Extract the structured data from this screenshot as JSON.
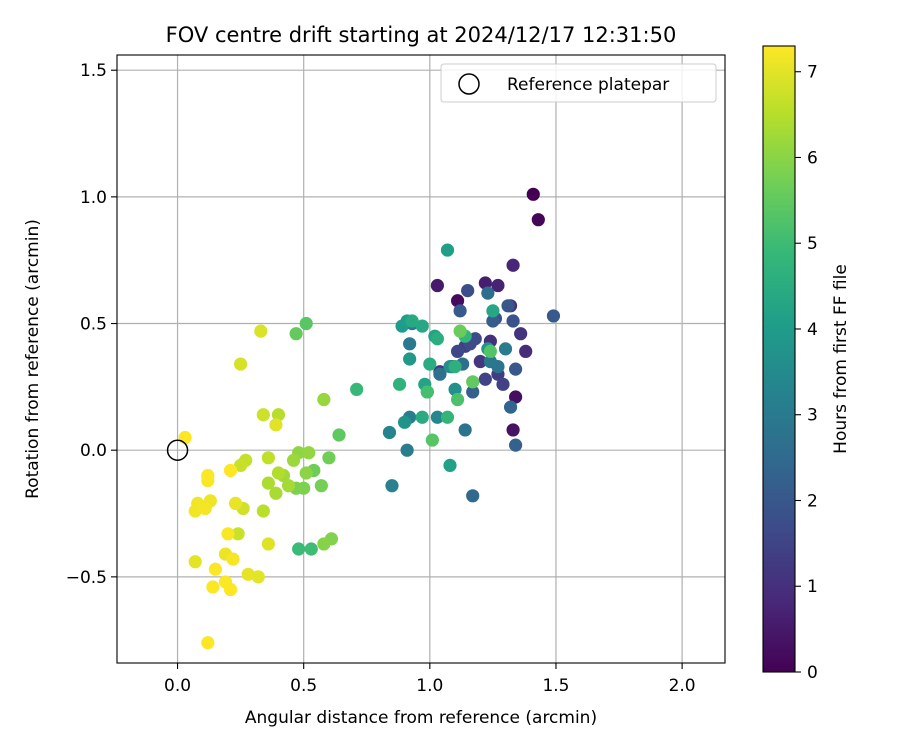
{
  "chart_data": {
    "type": "scatter",
    "title": "FOV centre drift starting at 2024/12/17 12:31:50",
    "xlabel": "Angular distance from reference (arcmin)",
    "ylabel": "Rotation from reference (arcmin)",
    "xlim": [
      -0.24,
      2.17
    ],
    "ylim": [
      -0.84,
      1.56
    ],
    "x_ticks": [
      0.0,
      0.5,
      1.0,
      1.5,
      2.0
    ],
    "x_tick_labels": [
      "0.0",
      "0.5",
      "1.0",
      "1.5",
      "2.0"
    ],
    "y_ticks": [
      -0.5,
      0.0,
      0.5,
      1.0,
      1.5
    ],
    "y_tick_labels": [
      "−0.5",
      "0.0",
      "0.5",
      "1.0",
      "1.5"
    ],
    "grid": true,
    "legend": {
      "position": "top-right",
      "entries": [
        "Reference platepar"
      ]
    },
    "reference_point": {
      "x": 0.0,
      "y": 0.0,
      "marker": "open circle",
      "color": "#000000"
    },
    "colorbar": {
      "label": "Hours from first FF file",
      "colormap": "viridis",
      "range": [
        0,
        7.3
      ],
      "ticks": [
        0,
        1,
        2,
        3,
        4,
        5,
        6,
        7
      ],
      "tick_labels": [
        "0",
        "1",
        "2",
        "3",
        "4",
        "5",
        "6",
        "7"
      ]
    },
    "series": [
      {
        "points": [
          [
            1.41,
            1.01,
            0.0
          ],
          [
            1.43,
            0.91,
            0.1
          ],
          [
            1.11,
            0.59,
            0.2
          ],
          [
            1.34,
            0.21,
            0.3
          ],
          [
            1.33,
            0.08,
            0.35
          ],
          [
            1.03,
            0.65,
            0.5
          ],
          [
            1.22,
            0.66,
            0.6
          ],
          [
            1.27,
            0.65,
            0.7
          ],
          [
            1.33,
            0.73,
            0.8
          ],
          [
            1.38,
            0.39,
            0.9
          ],
          [
            1.24,
            0.43,
            1.0
          ],
          [
            1.32,
            0.57,
            1.05
          ],
          [
            1.36,
            0.46,
            1.1
          ],
          [
            1.2,
            0.35,
            1.15
          ],
          [
            1.04,
            0.31,
            1.2
          ],
          [
            1.09,
            0.33,
            1.25
          ],
          [
            1.27,
            0.3,
            1.3
          ],
          [
            1.14,
            0.41,
            1.4
          ],
          [
            1.29,
            0.26,
            1.45
          ],
          [
            1.22,
            0.28,
            1.5
          ],
          [
            1.11,
            0.39,
            1.6
          ],
          [
            1.16,
            0.42,
            1.65
          ],
          [
            1.18,
            0.44,
            1.7
          ],
          [
            1.15,
            0.63,
            1.75
          ],
          [
            1.26,
            0.52,
            1.8
          ],
          [
            1.33,
            0.51,
            1.9
          ],
          [
            1.31,
            0.57,
            1.95
          ],
          [
            1.34,
            0.32,
            2.0
          ],
          [
            1.49,
            0.53,
            2.05
          ],
          [
            1.12,
            0.55,
            2.1
          ],
          [
            1.25,
            0.51,
            2.15
          ],
          [
            1.17,
            0.23,
            2.2
          ],
          [
            1.34,
            0.02,
            2.25
          ],
          [
            1.32,
            0.17,
            2.35
          ],
          [
            1.17,
            -0.18,
            2.45
          ],
          [
            1.23,
            0.62,
            2.6
          ],
          [
            1.13,
            0.34,
            2.65
          ],
          [
            1.04,
            0.3,
            2.7
          ],
          [
            1.14,
            0.08,
            2.8
          ],
          [
            1.27,
            0.33,
            2.85
          ],
          [
            1.24,
            0.35,
            2.9
          ],
          [
            0.92,
            0.42,
            2.95
          ],
          [
            0.93,
            0.5,
            3.0
          ],
          [
            1.3,
            0.4,
            3.05
          ],
          [
            0.91,
            0.0,
            3.1
          ],
          [
            0.92,
            0.13,
            3.15
          ],
          [
            0.85,
            -0.14,
            3.2
          ],
          [
            0.84,
            0.07,
            3.3
          ],
          [
            1.03,
            0.13,
            3.4
          ],
          [
            0.99,
            0.23,
            3.5
          ],
          [
            1.08,
            0.33,
            3.6
          ],
          [
            1.1,
            0.24,
            3.65
          ],
          [
            0.9,
            0.11,
            3.75
          ],
          [
            1.23,
            0.4,
            3.8
          ],
          [
            0.92,
            0.36,
            3.9
          ],
          [
            0.89,
            0.49,
            4.0
          ],
          [
            0.91,
            0.51,
            4.05
          ],
          [
            1.07,
            0.79,
            4.1
          ],
          [
            1.08,
            -0.06,
            4.15
          ],
          [
            1.02,
            0.45,
            4.2
          ],
          [
            0.98,
            0.26,
            4.25
          ],
          [
            1.25,
            0.55,
            4.3
          ],
          [
            0.97,
            0.49,
            4.35
          ],
          [
            0.93,
            0.51,
            4.4
          ],
          [
            0.97,
            0.13,
            4.45
          ],
          [
            1.0,
            0.34,
            4.5
          ],
          [
            1.03,
            0.44,
            4.55
          ],
          [
            1.1,
            0.33,
            4.6
          ],
          [
            0.88,
            0.26,
            4.7
          ],
          [
            1.07,
            0.13,
            4.8
          ],
          [
            1.14,
            0.45,
            4.85
          ],
          [
            0.71,
            0.24,
            4.9
          ],
          [
            0.48,
            -0.39,
            4.95
          ],
          [
            0.53,
            -0.39,
            5.0
          ],
          [
            0.99,
            0.23,
            5.1
          ],
          [
            1.11,
            0.2,
            5.2
          ],
          [
            1.24,
            0.39,
            5.3
          ],
          [
            1.01,
            0.04,
            5.35
          ],
          [
            0.51,
            0.5,
            5.4
          ],
          [
            0.64,
            0.06,
            5.45
          ],
          [
            1.17,
            0.27,
            5.5
          ],
          [
            0.47,
            0.46,
            5.55
          ],
          [
            1.12,
            0.47,
            5.6
          ],
          [
            0.54,
            -0.08,
            5.65
          ],
          [
            0.6,
            -0.03,
            5.7
          ],
          [
            0.57,
            -0.14,
            5.75
          ],
          [
            0.47,
            -0.15,
            5.8
          ],
          [
            0.5,
            -0.15,
            5.85
          ],
          [
            0.61,
            -0.35,
            5.9
          ],
          [
            0.58,
            -0.37,
            5.95
          ],
          [
            0.51,
            -0.09,
            6.0
          ],
          [
            0.48,
            -0.01,
            6.05
          ],
          [
            0.52,
            -0.01,
            6.1
          ],
          [
            0.58,
            0.2,
            6.15
          ],
          [
            0.46,
            -0.04,
            6.2
          ],
          [
            0.42,
            -0.1,
            6.25
          ],
          [
            0.44,
            -0.14,
            6.3
          ],
          [
            0.39,
            -0.17,
            6.35
          ],
          [
            0.36,
            -0.13,
            6.4
          ],
          [
            0.4,
            -0.09,
            6.45
          ],
          [
            0.4,
            0.14,
            6.5
          ],
          [
            0.34,
            -0.24,
            6.55
          ],
          [
            0.36,
            -0.03,
            6.6
          ],
          [
            0.27,
            -0.04,
            6.65
          ],
          [
            0.25,
            -0.06,
            6.7
          ],
          [
            0.24,
            -0.33,
            6.72
          ],
          [
            0.34,
            0.14,
            6.75
          ],
          [
            0.26,
            -0.23,
            6.8
          ],
          [
            0.25,
            0.34,
            6.85
          ],
          [
            0.33,
            0.47,
            6.9
          ],
          [
            0.36,
            -0.37,
            6.95
          ],
          [
            0.39,
            0.1,
            6.97
          ],
          [
            0.32,
            -0.5,
            7.0
          ],
          [
            0.07,
            -0.44,
            7.02
          ],
          [
            0.28,
            -0.49,
            7.05
          ],
          [
            0.23,
            -0.21,
            7.07
          ],
          [
            0.19,
            -0.41,
            7.1
          ],
          [
            0.13,
            -0.2,
            7.12
          ],
          [
            0.08,
            -0.21,
            7.15
          ],
          [
            0.07,
            -0.24,
            7.17
          ],
          [
            0.11,
            -0.23,
            7.2
          ],
          [
            0.22,
            -0.43,
            7.22
          ],
          [
            0.12,
            -0.12,
            7.25
          ],
          [
            0.2,
            -0.33,
            7.25
          ],
          [
            0.12,
            -0.1,
            7.27
          ],
          [
            0.15,
            -0.47,
            7.28
          ],
          [
            0.14,
            -0.54,
            7.28
          ],
          [
            0.19,
            -0.52,
            7.29
          ],
          [
            0.21,
            -0.55,
            7.3
          ],
          [
            0.12,
            -0.76,
            7.3
          ],
          [
            0.21,
            -0.08,
            7.3
          ],
          [
            0.03,
            0.05,
            7.3
          ]
        ]
      }
    ]
  }
}
